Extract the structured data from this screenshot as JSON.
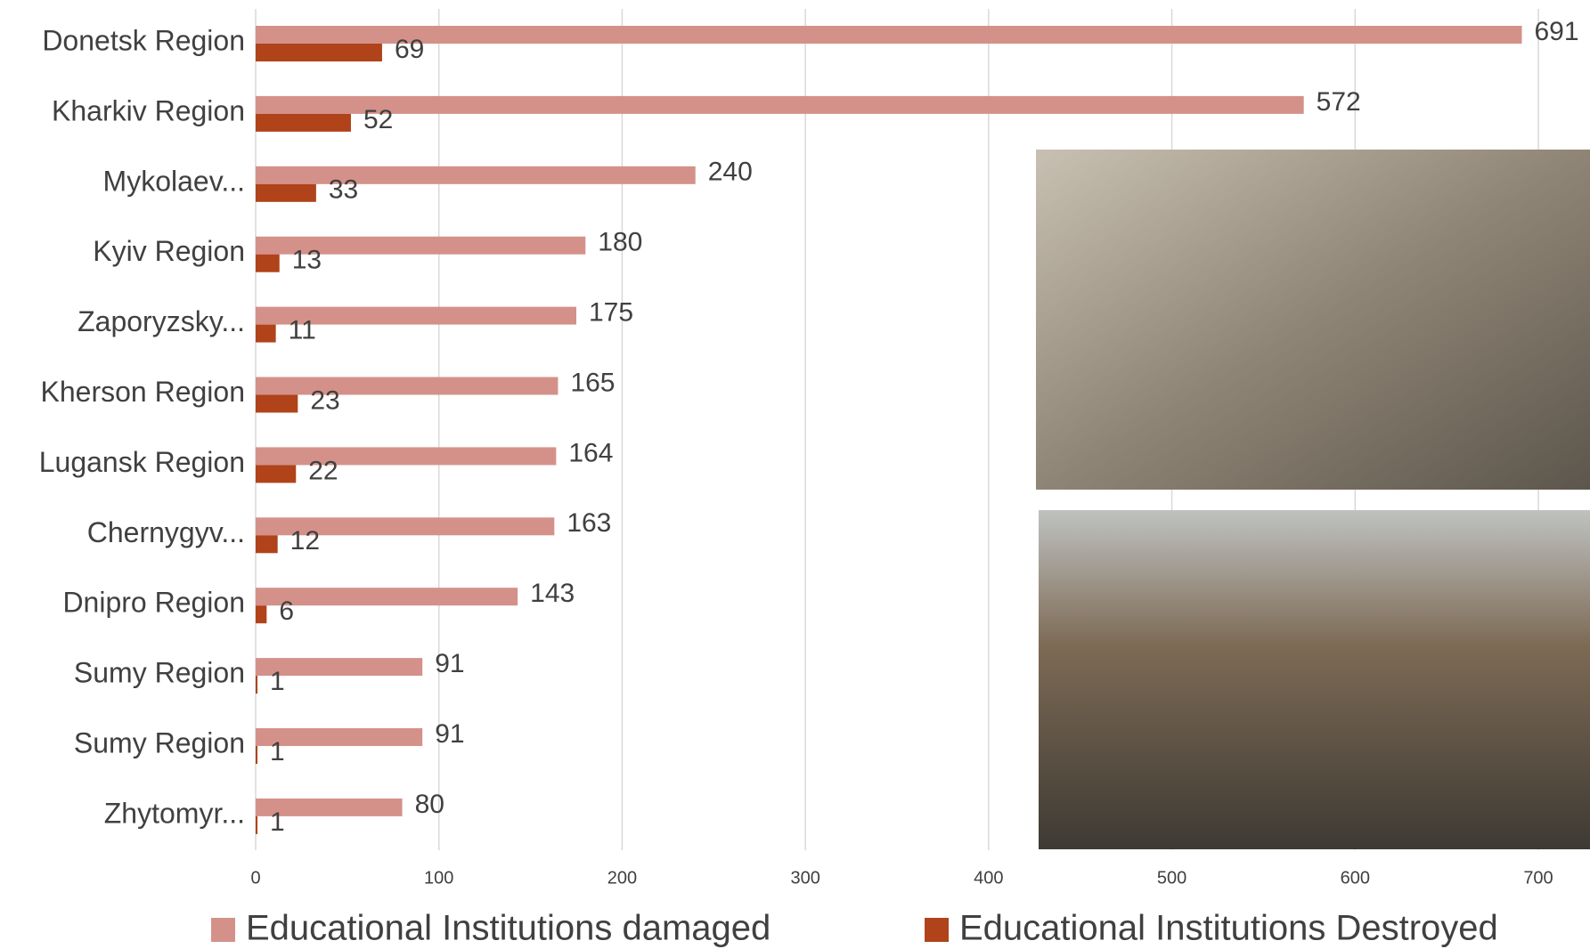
{
  "chart_data": {
    "type": "bar",
    "orientation": "horizontal",
    "categories": [
      "Donetsk Region",
      "Kharkiv Region",
      "Mykolaev...",
      "Kyiv Region",
      "Zaporyzsky...",
      "Kherson Region",
      "Lugansk Region",
      "Chernygyv...",
      "Dnipro Region",
      "Sumy Region",
      "Sumy Region",
      "Zhytomyr..."
    ],
    "series": [
      {
        "name": "Educational Institutions damaged",
        "color": "#d4918a",
        "values": [
          691,
          572,
          240,
          180,
          175,
          165,
          164,
          163,
          143,
          91,
          91,
          80
        ]
      },
      {
        "name": "Educational Institutions Destroyed",
        "color": "#b0431a",
        "values": [
          69,
          52,
          33,
          13,
          11,
          23,
          22,
          12,
          6,
          1,
          1,
          1
        ]
      }
    ],
    "xlim": [
      0,
      700
    ],
    "xticks": [
      0,
      100,
      200,
      300,
      400,
      500,
      600,
      700
    ],
    "grid": true,
    "legend": "bottom"
  }
}
